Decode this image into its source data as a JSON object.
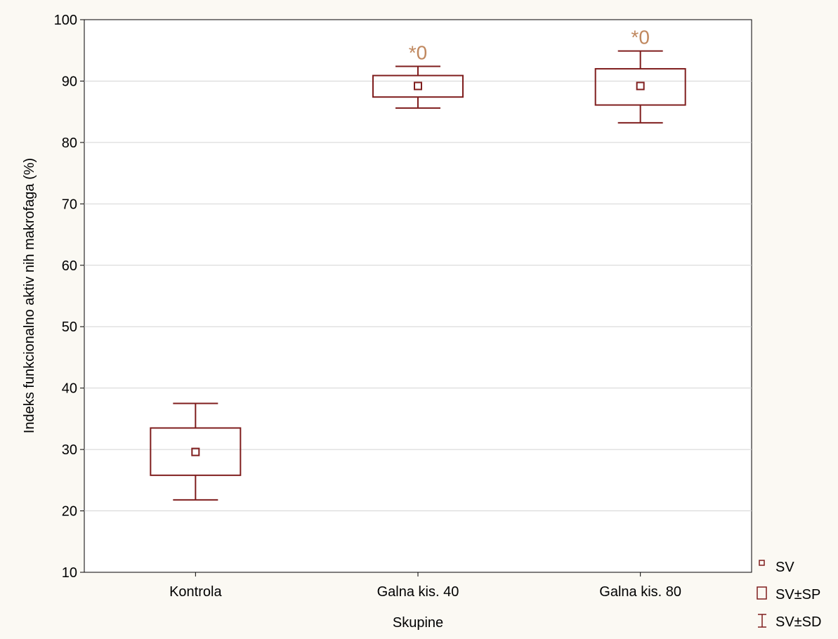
{
  "chart_data": {
    "type": "box",
    "xlabel": "Skupine",
    "ylabel": "Indeks funkcionalno aktiv nih makrofaga (%)",
    "ylim": [
      10,
      100
    ],
    "yticks": [
      10,
      20,
      30,
      40,
      50,
      60,
      70,
      80,
      90,
      100
    ],
    "grid": true,
    "categories": [
      "Kontrola",
      "Galna kis. 40",
      "Galna kis. 80"
    ],
    "series": [
      {
        "mean": [
          29.6,
          89.2,
          89.2
        ],
        "se_low": [
          25.8,
          87.4,
          86.1
        ],
        "se_high": [
          33.5,
          90.9,
          92.0
        ],
        "sd_low": [
          21.8,
          85.6,
          83.2
        ],
        "sd_high": [
          37.5,
          92.4,
          94.9
        ]
      }
    ],
    "annotations": [
      "",
      "*0",
      "*0"
    ],
    "legend": {
      "position": "bottom-right",
      "entries": [
        "SV",
        "SV±SP",
        "SV±SD"
      ]
    },
    "colors": {
      "box": "#7f1d1d",
      "annotation": "#c0885f",
      "grid": "#d4d4d4",
      "background": "#fbf9f3",
      "plot_area": "#ffffff"
    }
  }
}
